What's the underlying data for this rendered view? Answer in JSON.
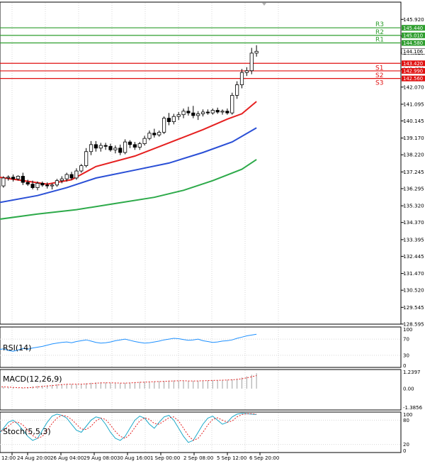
{
  "chart_data": {
    "type": "candlestick",
    "symbol_timeframe": "4H",
    "main": {
      "ylim": [
        128.59,
        146.9
      ],
      "y_ticks": [
        "145.920",
        "144.970",
        "144.020",
        "143.070",
        "142.070",
        "141.095",
        "140.145",
        "139.170",
        "138.220",
        "137.245",
        "136.295",
        "135.320",
        "134.370",
        "133.395",
        "132.445",
        "131.470",
        "130.520",
        "129.545",
        "128.595"
      ],
      "levels": [
        {
          "name": "R3",
          "value": 145.44,
          "label": "145.440",
          "color": "#2e9e2e"
        },
        {
          "name": "R2",
          "value": 145.01,
          "label": "145.010",
          "color": "#2e9e2e"
        },
        {
          "name": "R1",
          "value": 144.58,
          "label": "144.580",
          "color": "#2e9e2e"
        },
        {
          "name": "S1",
          "value": 143.42,
          "label": "143.420",
          "color": "#e01010"
        },
        {
          "name": "S2",
          "value": 142.99,
          "label": "142.990",
          "color": "#e01010"
        },
        {
          "name": "S3",
          "value": 142.56,
          "label": "142.560",
          "color": "#e01010"
        }
      ],
      "current_price": {
        "value": 144.106,
        "label": "144.106"
      },
      "candles": [
        [
          136.4,
          136.65,
          136.2,
          136.45
        ],
        [
          136.45,
          137.0,
          136.35,
          136.9
        ],
        [
          136.9,
          137.05,
          136.75,
          136.95
        ],
        [
          136.95,
          137.1,
          136.7,
          136.85
        ],
        [
          136.85,
          137.05,
          136.75,
          137.0
        ],
        [
          137.0,
          137.2,
          136.5,
          136.65
        ],
        [
          136.65,
          136.8,
          136.45,
          136.55
        ],
        [
          136.55,
          136.75,
          136.25,
          136.35
        ],
        [
          136.35,
          136.7,
          136.2,
          136.6
        ],
        [
          136.6,
          136.7,
          136.4,
          136.5
        ],
        [
          136.5,
          136.65,
          136.3,
          136.45
        ],
        [
          136.45,
          136.6,
          136.25,
          136.5
        ],
        [
          136.5,
          136.85,
          136.4,
          136.75
        ],
        [
          136.75,
          137.0,
          136.6,
          136.85
        ],
        [
          136.85,
          137.2,
          136.7,
          137.1
        ],
        [
          137.1,
          137.25,
          136.8,
          136.9
        ],
        [
          136.9,
          137.45,
          136.8,
          137.3
        ],
        [
          137.3,
          137.7,
          137.2,
          137.6
        ],
        [
          137.6,
          138.6,
          137.5,
          138.4
        ],
        [
          138.4,
          139.0,
          138.2,
          138.8
        ],
        [
          138.8,
          139.0,
          138.4,
          138.6
        ],
        [
          138.6,
          138.9,
          138.4,
          138.75
        ],
        [
          138.75,
          138.9,
          138.5,
          138.7
        ],
        [
          138.7,
          138.85,
          138.4,
          138.5
        ],
        [
          138.5,
          138.75,
          138.3,
          138.6
        ],
        [
          138.6,
          138.8,
          138.2,
          138.35
        ],
        [
          138.35,
          139.1,
          138.25,
          138.95
        ],
        [
          138.95,
          139.05,
          138.6,
          138.8
        ],
        [
          138.8,
          138.95,
          138.5,
          138.65
        ],
        [
          138.65,
          138.95,
          138.5,
          138.85
        ],
        [
          138.85,
          139.3,
          138.75,
          139.15
        ],
        [
          139.15,
          139.6,
          139.05,
          139.45
        ],
        [
          139.45,
          139.7,
          139.2,
          139.35
        ],
        [
          139.35,
          139.6,
          139.25,
          139.5
        ],
        [
          139.5,
          140.4,
          139.4,
          140.3
        ],
        [
          140.3,
          140.6,
          139.9,
          140.1
        ],
        [
          140.1,
          140.55,
          139.95,
          140.4
        ],
        [
          140.4,
          140.65,
          140.2,
          140.5
        ],
        [
          140.5,
          140.85,
          140.3,
          140.7
        ],
        [
          140.7,
          140.95,
          140.45,
          140.6
        ],
        [
          140.6,
          141.0,
          140.3,
          140.45
        ],
        [
          140.45,
          140.7,
          140.2,
          140.55
        ],
        [
          140.55,
          140.8,
          140.4,
          140.65
        ],
        [
          140.65,
          140.8,
          140.5,
          140.6
        ],
        [
          140.6,
          140.85,
          140.5,
          140.75
        ],
        [
          140.75,
          140.9,
          140.55,
          140.65
        ],
        [
          140.65,
          140.8,
          140.5,
          140.7
        ],
        [
          140.7,
          140.85,
          140.5,
          140.6
        ],
        [
          140.6,
          141.75,
          140.5,
          141.6
        ],
        [
          141.6,
          142.4,
          141.4,
          142.2
        ],
        [
          142.2,
          143.1,
          142.0,
          142.9
        ],
        [
          142.9,
          143.2,
          142.7,
          143.0
        ],
        [
          143.0,
          144.3,
          142.8,
          144.0
        ],
        [
          144.0,
          144.45,
          143.8,
          144.106
        ]
      ],
      "ma_lines": [
        {
          "name": "ma-red",
          "color": "#e52020",
          "points": [
            [
              0,
              136.95
            ],
            [
              10,
              136.55
            ],
            [
              15,
              136.8
            ],
            [
              20,
              137.55
            ],
            [
              28,
              138.15
            ],
            [
              35,
              138.9
            ],
            [
              42,
              139.65
            ],
            [
              47,
              140.25
            ],
            [
              50,
              140.55
            ],
            [
              53,
              141.25
            ]
          ]
        },
        {
          "name": "ma-blue",
          "color": "#2a4fd6",
          "points": [
            [
              0,
              135.5
            ],
            [
              8,
              135.9
            ],
            [
              14,
              136.35
            ],
            [
              20,
              136.9
            ],
            [
              28,
              137.35
            ],
            [
              35,
              137.75
            ],
            [
              42,
              138.35
            ],
            [
              48,
              138.95
            ],
            [
              53,
              139.75
            ]
          ]
        },
        {
          "name": "ma-green",
          "color": "#2daa4a",
          "points": [
            [
              0,
              134.55
            ],
            [
              8,
              134.85
            ],
            [
              16,
              135.1
            ],
            [
              24,
              135.45
            ],
            [
              32,
              135.8
            ],
            [
              38,
              136.2
            ],
            [
              44,
              136.75
            ],
            [
              50,
              137.4
            ],
            [
              53,
              137.95
            ]
          ]
        }
      ]
    },
    "rsi": {
      "label": "RSI(14)",
      "ylim": [
        0,
        100
      ],
      "ticks": [
        "100",
        "70",
        "30",
        "0"
      ],
      "values": [
        44,
        46,
        42,
        40,
        43,
        47,
        45,
        48,
        50,
        52,
        55,
        58,
        60,
        62,
        63,
        61,
        64,
        66,
        68,
        65,
        62,
        60,
        61,
        63,
        66,
        68,
        70,
        67,
        64,
        62,
        60,
        61,
        63,
        65,
        68,
        70,
        72,
        71,
        69,
        67,
        68,
        70,
        66,
        64,
        62,
        63,
        65,
        66,
        68,
        72,
        75,
        78,
        80,
        82
      ]
    },
    "macd": {
      "label": "MACD(12,26,9)",
      "ylim": [
        -1.3856,
        1.2397
      ],
      "ticks": [
        "1.2397",
        "0.00",
        "-1.3856"
      ],
      "histogram": [
        0.1,
        0.12,
        0.08,
        0.05,
        0.02,
        0.05,
        0.1,
        0.15,
        0.18,
        0.2,
        0.22,
        0.25,
        0.28,
        0.3,
        0.32,
        0.3,
        0.28,
        0.3,
        0.35,
        0.38,
        0.4,
        0.42,
        0.4,
        0.38,
        0.36,
        0.35,
        0.37,
        0.4,
        0.42,
        0.44,
        0.45,
        0.46,
        0.47,
        0.48,
        0.5,
        0.52,
        0.53,
        0.52,
        0.5,
        0.49,
        0.5,
        0.51,
        0.52,
        0.53,
        0.54,
        0.55,
        0.56,
        0.57,
        0.6,
        0.65,
        0.72,
        0.8,
        0.9,
        1.0
      ],
      "signal": [
        0.12,
        0.11,
        0.1,
        0.08,
        0.06,
        0.05,
        0.06,
        0.08,
        0.11,
        0.14,
        0.17,
        0.2,
        0.23,
        0.26,
        0.28,
        0.29,
        0.29,
        0.29,
        0.31,
        0.33,
        0.35,
        0.37,
        0.38,
        0.38,
        0.37,
        0.36,
        0.36,
        0.37,
        0.39,
        0.41,
        0.42,
        0.44,
        0.45,
        0.46,
        0.47,
        0.49,
        0.5,
        0.51,
        0.51,
        0.5,
        0.5,
        0.5,
        0.51,
        0.52,
        0.53,
        0.54,
        0.55,
        0.56,
        0.57,
        0.6,
        0.64,
        0.7,
        0.77,
        0.85
      ]
    },
    "stoch": {
      "label": "Stoch(5,5,3)",
      "ylim": [
        0,
        100
      ],
      "ticks": [
        "100",
        "80",
        "20",
        "0"
      ],
      "k": [
        45,
        60,
        75,
        80,
        70,
        55,
        40,
        30,
        35,
        55,
        75,
        90,
        95,
        92,
        85,
        70,
        55,
        50,
        65,
        80,
        88,
        85,
        70,
        50,
        35,
        30,
        40,
        60,
        80,
        90,
        85,
        70,
        60,
        75,
        88,
        92,
        80,
        60,
        40,
        25,
        30,
        50,
        70,
        85,
        90,
        80,
        70,
        75,
        88,
        95,
        97,
        96,
        95,
        94
      ],
      "d": [
        50,
        55,
        65,
        75,
        75,
        68,
        55,
        42,
        35,
        40,
        55,
        72,
        85,
        92,
        90,
        82,
        70,
        58,
        57,
        65,
        78,
        85,
        82,
        68,
        52,
        40,
        35,
        45,
        62,
        78,
        86,
        82,
        72,
        70,
        78,
        86,
        88,
        78,
        60,
        42,
        30,
        35,
        50,
        68,
        82,
        86,
        80,
        75,
        78,
        88,
        94,
        96,
        96,
        95
      ]
    },
    "x_labels": [
      "12:00",
      "24 Aug 20:00",
      "26 Aug 04:00",
      "29 Aug 08:00",
      "30 Aug 16:00",
      "1 Sep 00:00",
      "2 Sep 08:00",
      "5 Sep 12:00",
      "6 Sep 20:00"
    ]
  }
}
